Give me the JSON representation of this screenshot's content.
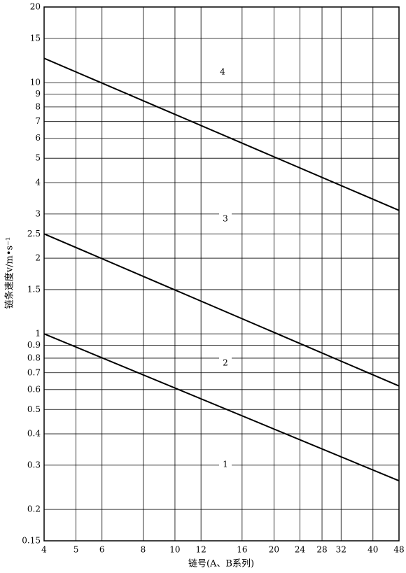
{
  "chart_data": {
    "type": "line",
    "x_label": "链号(A、B系列)",
    "y_label": "链条速度v/m•s⁻¹",
    "x": [
      4,
      48
    ],
    "series": [
      {
        "color": "#000000",
        "values": [
          1,
          0.26
        ]
      },
      {
        "color": "#000000",
        "values": [
          2.5,
          0.62
        ]
      },
      {
        "color": "#000000",
        "values": [
          12.5,
          3.1
        ]
      }
    ],
    "annotations": [
      "4",
      "3",
      "2",
      "1"
    ],
    "xlim": [
      4,
      48
    ],
    "ylim": [
      0.15,
      20
    ],
    "xticks": [
      4,
      5,
      6,
      8,
      10,
      12,
      16,
      20,
      24,
      28,
      32,
      40,
      48
    ],
    "yticks": [
      0.15,
      0.2,
      0.3,
      0.4,
      0.5,
      0.6,
      0.7,
      0.8,
      0.9,
      1,
      1.5,
      2,
      2.5,
      3,
      4,
      5,
      6,
      7,
      8,
      9,
      10,
      15,
      20
    ],
    "xscale": "log",
    "yscale": "log",
    "grid": true
  }
}
